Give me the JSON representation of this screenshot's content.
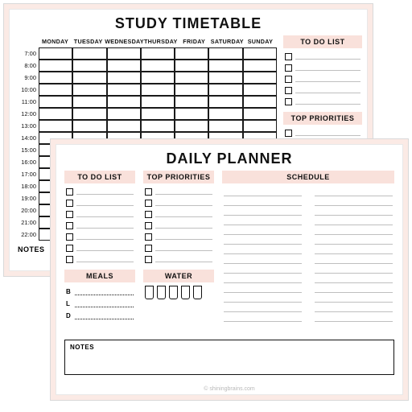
{
  "colors": {
    "pink_bg": "#fbeae5",
    "pink_band": "#f9e1db",
    "black": "#111111",
    "grid_line": "#1a1a1a",
    "thin_line": "#bfbfbf",
    "page_outline": "#d9d9d9"
  },
  "sheet1": {
    "title": "STUDY TIMETABLE",
    "days": [
      "MONDAY",
      "TUESDAY",
      "WEDNESDAY",
      "THURSDAY",
      "FRIDAY",
      "SATURDAY",
      "SUNDAY"
    ],
    "hours": [
      "7:00",
      "8:00",
      "9:00",
      "10:00",
      "11:00",
      "12:00",
      "13:00",
      "14:00",
      "15:00",
      "16:00",
      "17:00",
      "18:00",
      "19:00",
      "20:00",
      "21:00",
      "22:00"
    ],
    "todo_heading": "TO DO LIST",
    "todo_count": 5,
    "priorities_heading": "TOP PRIORITIES",
    "priorities_count": 1,
    "notes_label": "NOTES"
  },
  "sheet2": {
    "title": "DAILY PLANNER",
    "todo_heading": "TO DO LIST",
    "todo_count": 7,
    "priorities_heading": "TOP PRIORITIES",
    "priorities_count": 7,
    "schedule_heading": "SCHEDULE",
    "schedule_lines_per_col": 14,
    "meals_heading": "MEALS",
    "meals": [
      "B",
      "L",
      "D"
    ],
    "water_heading": "WATER",
    "water_glasses": 5,
    "notes_label": "NOTES",
    "credit": "© shiningbrains.com"
  }
}
